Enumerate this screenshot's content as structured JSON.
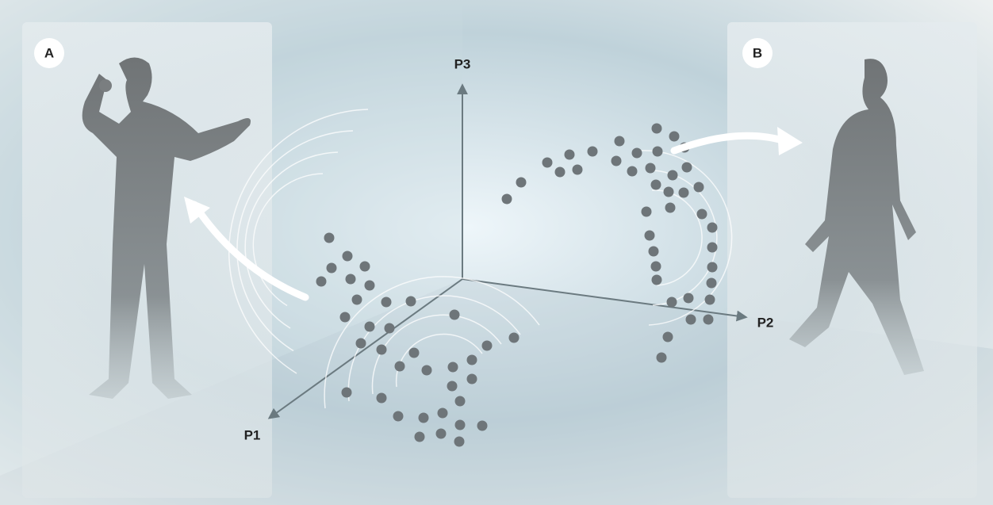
{
  "panels": [
    {
      "label": "A"
    },
    {
      "label": "B"
    }
  ],
  "axes": [
    {
      "label": "P1"
    },
    {
      "label": "P2"
    },
    {
      "label": "P3"
    }
  ]
}
